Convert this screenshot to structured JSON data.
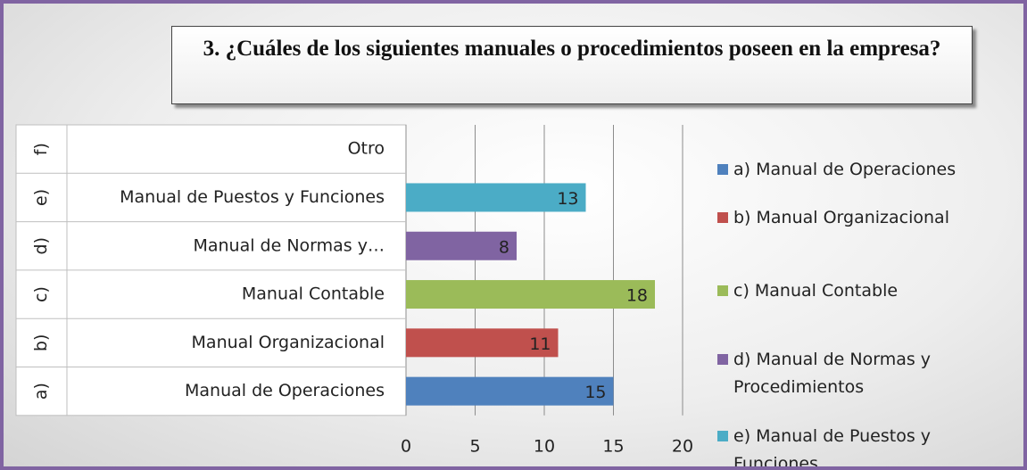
{
  "chart_data": {
    "type": "bar",
    "orientation": "horizontal",
    "title": "3. ¿Cuáles de los siguientes manuales o procedimientos poseen en la empresa?",
    "category_groups": [
      "a)",
      "b)",
      "c)",
      "d)",
      "e)",
      "f)"
    ],
    "categories": [
      "Manual de Operaciones",
      "Manual Organizacional",
      "Manual Contable",
      "Manual de Normas y…",
      "Manual de Puestos y Funciones",
      "Otro"
    ],
    "values": [
      15,
      11,
      18,
      8,
      13,
      null
    ],
    "colors": [
      "#4f81bd",
      "#c0504d",
      "#9bbb59",
      "#8064a2",
      "#4bacc6",
      "#f79646"
    ],
    "legend": [
      "a) Manual de Operaciones",
      "b) Manual Organizacional",
      "c) Manual Contable",
      "d) Manual de Normas y Procedimientos",
      "e) Manual de Puestos y Funciones"
    ],
    "xlim": [
      0,
      20
    ],
    "xticks": [
      0,
      5,
      10,
      15,
      20
    ],
    "grid": true
  }
}
